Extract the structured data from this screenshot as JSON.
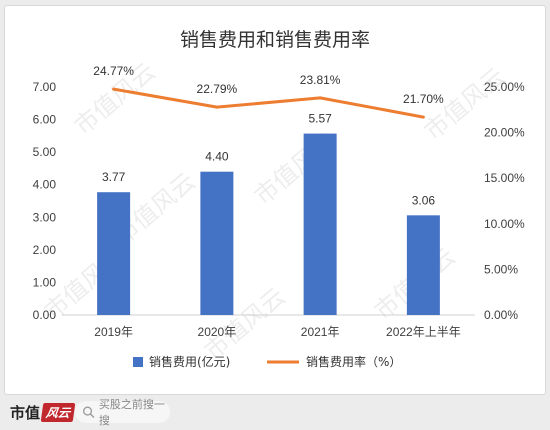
{
  "chart_data": {
    "type": "bar+line",
    "title": "销售费用和销售费用率",
    "categories": [
      "2019年",
      "2020年",
      "2021年",
      "2022年上半年"
    ],
    "series": [
      {
        "name": "销售费用(亿元)",
        "type": "bar",
        "axis": "left",
        "values": [
          3.77,
          4.4,
          5.57,
          3.06
        ],
        "labels": [
          "3.77",
          "4.40",
          "5.57",
          "3.06"
        ],
        "color": "#4472c4"
      },
      {
        "name": "销售费用率（%）",
        "type": "line",
        "axis": "right",
        "values": [
          24.77,
          22.79,
          23.81,
          21.7
        ],
        "labels": [
          "24.77%",
          "22.79%",
          "23.81%",
          "21.70%"
        ],
        "color": "#ed7d31"
      }
    ],
    "y_left": {
      "min": 0,
      "max": 7,
      "step": 1,
      "ticks": [
        "0.00",
        "1.00",
        "2.00",
        "3.00",
        "4.00",
        "5.00",
        "6.00",
        "7.00"
      ]
    },
    "y_right": {
      "min": 0,
      "max": 25,
      "step": 5,
      "ticks": [
        "0.00%",
        "5.00%",
        "10.00%",
        "15.00%",
        "20.00%",
        "25.00%"
      ]
    },
    "grid": false,
    "legend_position": "bottom"
  },
  "watermark": {
    "text": "市值风云"
  },
  "footer": {
    "logo_text": "市值",
    "logo_badge": "风云",
    "search_placeholder": "买股之前搜一搜"
  }
}
